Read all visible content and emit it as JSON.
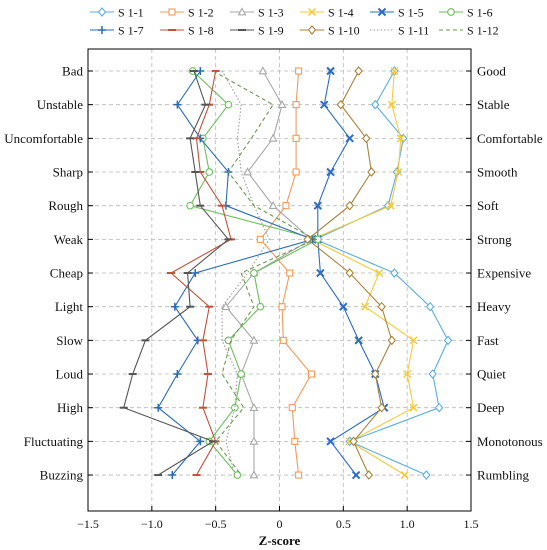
{
  "chart_data": {
    "type": "line",
    "xlabel": "Z-score",
    "xlim": [
      -1.5,
      1.5
    ],
    "xticks": [
      "−1.5",
      "−1.0",
      "−0.5",
      "0",
      "0.5",
      "1.0",
      "1.5"
    ],
    "x_tick_values": [
      -1.5,
      -1.0,
      -0.5,
      0,
      0.5,
      1.0,
      1.5
    ],
    "grid": true,
    "legend_position": "top",
    "left_labels": [
      "Bad",
      "Unstable",
      "Uncomfortable",
      "Sharp",
      "Rough",
      "Weak",
      "Cheap",
      "Light",
      "Slow",
      "Loud",
      "High",
      "Fluctuating",
      "Buzzing"
    ],
    "right_labels": [
      "Good",
      "Stable",
      "Comfortable",
      "Smooth",
      "Soft",
      "Strong",
      "Expensive",
      "Heavy",
      "Fast",
      "Quiet",
      "Deep",
      "Monotonous",
      "Rumbling"
    ],
    "series": [
      {
        "name": "S 1-1",
        "color": "#5aaee0",
        "marker": "diamond",
        "dash": "",
        "values": [
          0.9,
          0.75,
          0.97,
          0.92,
          0.85,
          0.28,
          0.9,
          1.18,
          1.32,
          1.2,
          1.25,
          0.55,
          1.15
        ]
      },
      {
        "name": "S 1-2",
        "color": "#f39a5a",
        "marker": "square",
        "dash": "",
        "values": [
          0.15,
          0.13,
          0.13,
          0.13,
          0.05,
          -0.15,
          0.08,
          0.02,
          0.03,
          0.25,
          0.1,
          0.12,
          0.15
        ]
      },
      {
        "name": "S 1-3",
        "color": "#a8a8a8",
        "marker": "triangle",
        "dash": "",
        "values": [
          -0.13,
          0.02,
          -0.05,
          -0.25,
          -0.05,
          0.25,
          -0.2,
          -0.42,
          -0.2,
          -0.3,
          -0.2,
          -0.2,
          -0.2
        ]
      },
      {
        "name": "S 1-4",
        "color": "#f6cb3a",
        "marker": "cross",
        "dash": "",
        "values": [
          0.9,
          0.88,
          0.95,
          0.93,
          0.87,
          0.25,
          0.78,
          0.67,
          1.05,
          1.0,
          1.05,
          0.55,
          0.98
        ]
      },
      {
        "name": "S 1-5",
        "color": "#2c6cc4",
        "marker": "x",
        "dash": "",
        "values": [
          0.4,
          0.35,
          0.55,
          0.4,
          0.3,
          0.3,
          0.32,
          0.5,
          0.62,
          0.75,
          0.82,
          0.4,
          0.6
        ]
      },
      {
        "name": "S 1-6",
        "color": "#6cbf5a",
        "marker": "circle",
        "dash": "",
        "values": [
          -0.68,
          -0.4,
          -0.6,
          -0.55,
          -0.7,
          0.3,
          -0.2,
          -0.15,
          -0.4,
          -0.3,
          -0.35,
          -0.55,
          -0.33
        ]
      },
      {
        "name": "S 1-7",
        "color": "#2a6cb4",
        "marker": "plus",
        "dash": "",
        "values": [
          -0.62,
          -0.8,
          -0.62,
          -0.4,
          -0.42,
          0.26,
          -0.66,
          -0.82,
          -0.64,
          -0.8,
          -0.95,
          -0.62,
          -0.84
        ]
      },
      {
        "name": "S 1-8",
        "color": "#c0513a",
        "marker": "minus",
        "dash": "",
        "values": [
          -0.5,
          -0.55,
          -0.65,
          -0.62,
          -0.45,
          -0.38,
          -0.85,
          -0.55,
          -0.6,
          -0.56,
          -0.6,
          -0.5,
          -0.65
        ]
      },
      {
        "name": "S 1-9",
        "color": "#555555",
        "marker": "minus",
        "dash": "",
        "values": [
          -0.67,
          -0.58,
          -0.7,
          -0.66,
          -0.62,
          -0.4,
          -0.72,
          -0.7,
          -1.05,
          -1.15,
          -1.22,
          -0.52,
          -0.95
        ]
      },
      {
        "name": "S 1-10",
        "color": "#a8833a",
        "marker": "diamond",
        "dash": "",
        "values": [
          0.62,
          0.48,
          0.68,
          0.72,
          0.55,
          0.22,
          0.55,
          0.8,
          0.88,
          0.75,
          0.8,
          0.58,
          0.7
        ]
      },
      {
        "name": "S 1-11",
        "color": "#9a9a9a",
        "marker": "none",
        "dash": "1.5 2",
        "values": [
          -0.45,
          -0.3,
          -0.33,
          -0.3,
          -0.2,
          -0.08,
          -0.25,
          -0.45,
          -0.45,
          -0.33,
          -0.35,
          -0.42,
          -0.35
        ]
      },
      {
        "name": "S 1-12",
        "color": "#6a9a4e",
        "marker": "none",
        "dash": "4 3",
        "values": [
          -0.52,
          -0.05,
          -0.22,
          -0.4,
          -0.2,
          0.28,
          -0.3,
          -0.2,
          -0.38,
          -0.45,
          -0.28,
          -0.5,
          -0.3
        ]
      }
    ]
  }
}
